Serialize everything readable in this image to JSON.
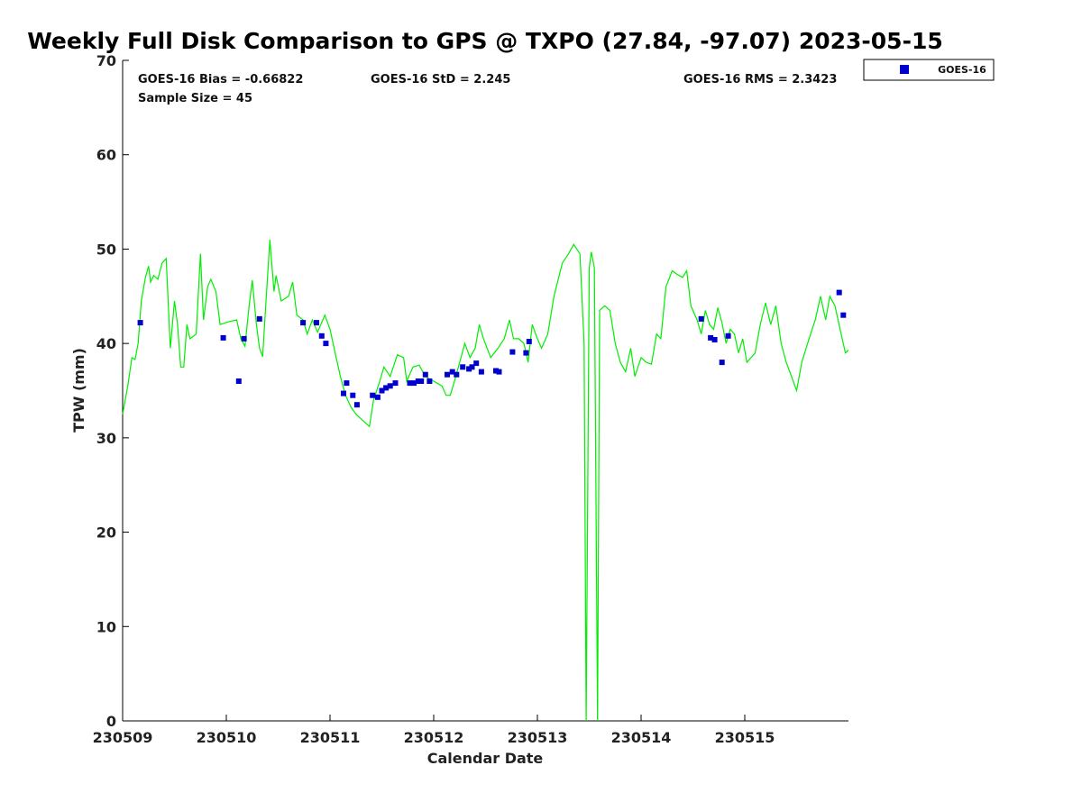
{
  "chart_data": {
    "type": "line",
    "title": "Weekly Full Disk Comparison to GPS @ TXPO (27.84, -97.07) 2023-05-15",
    "xlabel": "Calendar Date",
    "ylabel": "TPW (mm)",
    "xlim": [
      230509,
      230516
    ],
    "ylim": [
      0,
      70
    ],
    "yticks": [
      0,
      10,
      20,
      30,
      40,
      50,
      60,
      70
    ],
    "xticks": [
      {
        "value": 230509,
        "label": "230509"
      },
      {
        "value": 230510,
        "label": "230510"
      },
      {
        "value": 230511,
        "label": "230511"
      },
      {
        "value": 230512,
        "label": "230512"
      },
      {
        "value": 230513,
        "label": "230513"
      },
      {
        "value": 230514,
        "label": "230514"
      },
      {
        "value": 230515,
        "label": "230515"
      }
    ],
    "grid": false,
    "legend_position": "top-right",
    "stats": {
      "bias": "GOES-16 Bias = -0.66822",
      "std": "GOES-16 StD = 2.245",
      "rms": "GOES-16 RMS = 2.3423",
      "sample": "Sample Size = 45"
    },
    "colors": {
      "gps": "#00ee00",
      "goes": "#0000cc"
    },
    "series": [
      {
        "type": "line",
        "color": "#00ee00",
        "points": [
          [
            230509.0,
            32.5
          ],
          [
            230509.05,
            35.5
          ],
          [
            230509.09,
            38.5
          ],
          [
            230509.12,
            38.3
          ],
          [
            230509.15,
            40
          ],
          [
            230509.18,
            44.5
          ],
          [
            230509.22,
            47
          ],
          [
            230509.25,
            48.2
          ],
          [
            230509.27,
            46.5
          ],
          [
            230509.3,
            47.2
          ],
          [
            230509.34,
            46.8
          ],
          [
            230509.38,
            48.5
          ],
          [
            230509.42,
            49
          ],
          [
            230509.46,
            39.5
          ],
          [
            230509.5,
            44.5
          ],
          [
            230509.53,
            42
          ],
          [
            230509.56,
            37.5
          ],
          [
            230509.59,
            37.5
          ],
          [
            230509.62,
            42
          ],
          [
            230509.65,
            40.5
          ],
          [
            230509.71,
            41
          ],
          [
            230509.75,
            49.5
          ],
          [
            230509.78,
            42.5
          ],
          [
            230509.82,
            46
          ],
          [
            230509.85,
            46.8
          ],
          [
            230509.9,
            45.5
          ],
          [
            230509.94,
            42
          ],
          [
            230510.02,
            42.3
          ],
          [
            230510.1,
            42.5
          ],
          [
            230510.14,
            40.5
          ],
          [
            230510.18,
            39.7
          ],
          [
            230510.22,
            44
          ],
          [
            230510.25,
            46.7
          ],
          [
            230510.29,
            42
          ],
          [
            230510.32,
            39.5
          ],
          [
            230510.35,
            38.6
          ],
          [
            230510.38,
            44
          ],
          [
            230510.42,
            51
          ],
          [
            230510.46,
            45.5
          ],
          [
            230510.48,
            47.2
          ],
          [
            230510.53,
            44.5
          ],
          [
            230510.6,
            45
          ],
          [
            230510.64,
            46.5
          ],
          [
            230510.68,
            43
          ],
          [
            230510.74,
            42.5
          ],
          [
            230510.78,
            41
          ],
          [
            230510.83,
            42.5
          ],
          [
            230510.88,
            41.2
          ],
          [
            230510.95,
            43
          ],
          [
            230511.0,
            41.5
          ],
          [
            230511.05,
            39
          ],
          [
            230511.1,
            36.5
          ],
          [
            230511.15,
            34.5
          ],
          [
            230511.2,
            33.3
          ],
          [
            230511.25,
            32.5
          ],
          [
            230511.3,
            32
          ],
          [
            230511.38,
            31.2
          ],
          [
            230511.42,
            34
          ],
          [
            230511.48,
            36
          ],
          [
            230511.52,
            37.5
          ],
          [
            230511.58,
            36.5
          ],
          [
            230511.65,
            38.8
          ],
          [
            230511.71,
            38.5
          ],
          [
            230511.74,
            36
          ],
          [
            230511.8,
            37.5
          ],
          [
            230511.86,
            37.7
          ],
          [
            230511.92,
            36.5
          ],
          [
            230512.0,
            36
          ],
          [
            230512.08,
            35.5
          ],
          [
            230512.12,
            34.5
          ],
          [
            230512.16,
            34.5
          ],
          [
            230512.2,
            36
          ],
          [
            230512.25,
            38
          ],
          [
            230512.3,
            40
          ],
          [
            230512.35,
            38.5
          ],
          [
            230512.4,
            39.5
          ],
          [
            230512.44,
            42
          ],
          [
            230512.48,
            40.5
          ],
          [
            230512.55,
            38.5
          ],
          [
            230512.62,
            39.5
          ],
          [
            230512.68,
            40.5
          ],
          [
            230512.73,
            42.5
          ],
          [
            230512.77,
            40.5
          ],
          [
            230512.82,
            40.5
          ],
          [
            230512.87,
            40
          ],
          [
            230512.91,
            38
          ],
          [
            230512.95,
            42
          ],
          [
            230513.0,
            40.5
          ],
          [
            230513.04,
            39.5
          ],
          [
            230513.1,
            41
          ],
          [
            230513.16,
            45
          ],
          [
            230513.24,
            48.5
          ],
          [
            230513.3,
            49.5
          ],
          [
            230513.35,
            50.5
          ],
          [
            230513.41,
            49.5
          ],
          [
            230513.45,
            40
          ],
          [
            230513.47,
            0
          ],
          [
            230513.5,
            48
          ],
          [
            230513.52,
            49.7
          ],
          [
            230513.55,
            48
          ],
          [
            230513.58,
            0
          ],
          [
            230513.6,
            43.5
          ],
          [
            230513.65,
            44
          ],
          [
            230513.7,
            43.5
          ],
          [
            230513.75,
            40
          ],
          [
            230513.8,
            38
          ],
          [
            230513.85,
            37
          ],
          [
            230513.9,
            39.5
          ],
          [
            230513.94,
            36.5
          ],
          [
            230514.0,
            38.5
          ],
          [
            230514.05,
            38
          ],
          [
            230514.1,
            37.8
          ],
          [
            230514.15,
            41
          ],
          [
            230514.19,
            40.5
          ],
          [
            230514.24,
            46
          ],
          [
            230514.3,
            47.7
          ],
          [
            230514.35,
            47.3
          ],
          [
            230514.4,
            47
          ],
          [
            230514.44,
            47.7
          ],
          [
            230514.48,
            44
          ],
          [
            230514.54,
            42.5
          ],
          [
            230514.58,
            41
          ],
          [
            230514.62,
            43.5
          ],
          [
            230514.66,
            42
          ],
          [
            230514.7,
            41.5
          ],
          [
            230514.74,
            43.8
          ],
          [
            230514.78,
            42.2
          ],
          [
            230514.82,
            40
          ],
          [
            230514.86,
            41.5
          ],
          [
            230514.9,
            41
          ],
          [
            230514.94,
            39
          ],
          [
            230514.98,
            40.5
          ],
          [
            230515.02,
            38
          ],
          [
            230515.1,
            39
          ],
          [
            230515.15,
            42
          ],
          [
            230515.2,
            44.3
          ],
          [
            230515.25,
            42
          ],
          [
            230515.3,
            44
          ],
          [
            230515.35,
            40
          ],
          [
            230515.4,
            38
          ],
          [
            230515.45,
            36.5
          ],
          [
            230515.5,
            35
          ],
          [
            230515.55,
            38
          ],
          [
            230515.62,
            40.5
          ],
          [
            230515.68,
            42.5
          ],
          [
            230515.73,
            45
          ],
          [
            230515.78,
            42.5
          ],
          [
            230515.82,
            45
          ],
          [
            230515.87,
            44
          ],
          [
            230515.93,
            41
          ],
          [
            230515.97,
            39
          ],
          [
            230516.0,
            39.3
          ]
        ]
      },
      {
        "type": "scatter",
        "name": "GOES-16",
        "color": "#0000cc",
        "points": [
          [
            230509.17,
            42.2
          ],
          [
            230509.97,
            40.6
          ],
          [
            230510.12,
            36
          ],
          [
            230510.17,
            40.5
          ],
          [
            230510.32,
            42.6
          ],
          [
            230510.74,
            42.2
          ],
          [
            230510.87,
            42.2
          ],
          [
            230510.92,
            40.8
          ],
          [
            230510.96,
            40
          ],
          [
            230511.13,
            34.7
          ],
          [
            230511.16,
            35.8
          ],
          [
            230511.22,
            34.5
          ],
          [
            230511.26,
            33.5
          ],
          [
            230511.41,
            34.5
          ],
          [
            230511.46,
            34.3
          ],
          [
            230511.5,
            35
          ],
          [
            230511.54,
            35.3
          ],
          [
            230511.58,
            35.5
          ],
          [
            230511.63,
            35.8
          ],
          [
            230511.77,
            35.8
          ],
          [
            230511.81,
            35.8
          ],
          [
            230511.85,
            36
          ],
          [
            230511.88,
            36
          ],
          [
            230511.92,
            36.7
          ],
          [
            230511.96,
            36
          ],
          [
            230512.13,
            36.7
          ],
          [
            230512.18,
            37
          ],
          [
            230512.22,
            36.7
          ],
          [
            230512.28,
            37.5
          ],
          [
            230512.34,
            37.3
          ],
          [
            230512.37,
            37.5
          ],
          [
            230512.41,
            37.9
          ],
          [
            230512.46,
            37
          ],
          [
            230512.6,
            37.1
          ],
          [
            230512.63,
            37
          ],
          [
            230512.76,
            39.1
          ],
          [
            230512.89,
            39
          ],
          [
            230512.92,
            40.2
          ],
          [
            230514.58,
            42.6
          ],
          [
            230514.67,
            40.6
          ],
          [
            230514.71,
            40.4
          ],
          [
            230514.78,
            38
          ],
          [
            230514.84,
            40.8
          ],
          [
            230515.91,
            45.4
          ],
          [
            230515.95,
            43
          ]
        ]
      }
    ]
  }
}
